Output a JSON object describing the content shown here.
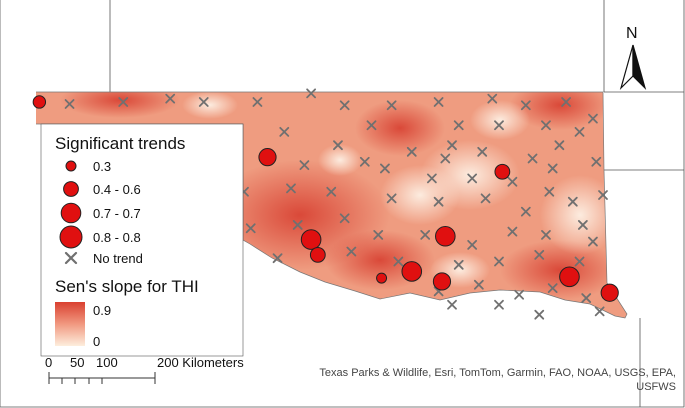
{
  "legend": {
    "trends_title": "Significant trends",
    "classes": [
      {
        "label": "0.3",
        "level": 0.3
      },
      {
        "label": "0.4 - 0.6",
        "level": 0.5
      },
      {
        "label": "0.7 - 0.7",
        "level": 0.7
      },
      {
        "label": "0.8 - 0.8",
        "level": 0.8
      }
    ],
    "no_trend_label": "No trend",
    "slope_title": "Sen's slope for THI",
    "slope_max": "0.9",
    "slope_min": "0"
  },
  "scale_bar": {
    "ticks": [
      "0",
      "50",
      "100",
      "200 Kilometers"
    ]
  },
  "north_arrow": {
    "label": "N",
    "icon": "north-arrow-icon"
  },
  "attribution": {
    "line1": "Texas Parks & Wildlife, Esri, TomTom, Garmin, FAO, NOAA, USGS, EPA,",
    "line2": "USFWS"
  },
  "colors": {
    "trend_marker": "#e01010",
    "no_trend_marker": "#707070",
    "ramp_high": "#d94030",
    "ramp_low": "#fdeedd",
    "state_fill": "#ef9c80",
    "background": "#ffffff"
  },
  "stations": {
    "significant": [
      {
        "lon": -102.95,
        "lat": 36.85,
        "trend": 0.4
      },
      {
        "lon": -99.55,
        "lat": 36.02,
        "trend": 0.6
      },
      {
        "lon": -96.05,
        "lat": 35.8,
        "trend": 0.5
      },
      {
        "lon": -98.9,
        "lat": 34.78,
        "trend": 0.7
      },
      {
        "lon": -98.8,
        "lat": 34.55,
        "trend": 0.5
      },
      {
        "lon": -96.9,
        "lat": 34.83,
        "trend": 0.7
      },
      {
        "lon": -97.85,
        "lat": 34.2,
        "trend": 0.3
      },
      {
        "lon": -97.4,
        "lat": 34.3,
        "trend": 0.7
      },
      {
        "lon": -96.95,
        "lat": 34.15,
        "trend": 0.6
      },
      {
        "lon": -95.05,
        "lat": 34.22,
        "trend": 0.7
      },
      {
        "lon": -94.45,
        "lat": 33.98,
        "trend": 0.6
      }
    ],
    "no_trend": [
      {
        "lon": -102.5,
        "lat": 36.82
      },
      {
        "lon": -101.7,
        "lat": 36.85
      },
      {
        "lon": -101.0,
        "lat": 36.9
      },
      {
        "lon": -100.5,
        "lat": 36.85
      },
      {
        "lon": -99.7,
        "lat": 36.85
      },
      {
        "lon": -98.9,
        "lat": 36.98
      },
      {
        "lon": -98.4,
        "lat": 36.8
      },
      {
        "lon": -97.7,
        "lat": 36.8
      },
      {
        "lon": -97.0,
        "lat": 36.85
      },
      {
        "lon": -96.2,
        "lat": 36.9
      },
      {
        "lon": -95.7,
        "lat": 36.8
      },
      {
        "lon": -95.1,
        "lat": 36.85
      },
      {
        "lon": -94.7,
        "lat": 36.6
      },
      {
        "lon": -99.3,
        "lat": 36.4
      },
      {
        "lon": -98.0,
        "lat": 36.5
      },
      {
        "lon": -96.7,
        "lat": 36.5
      },
      {
        "lon": -96.1,
        "lat": 36.5
      },
      {
        "lon": -95.4,
        "lat": 36.5
      },
      {
        "lon": -95.2,
        "lat": 36.2
      },
      {
        "lon": -94.9,
        "lat": 36.4
      },
      {
        "lon": -98.5,
        "lat": 36.2
      },
      {
        "lon": -97.4,
        "lat": 36.1
      },
      {
        "lon": -96.8,
        "lat": 36.2
      },
      {
        "lon": -96.35,
        "lat": 36.1
      },
      {
        "lon": -95.6,
        "lat": 36.0
      },
      {
        "lon": -95.3,
        "lat": 35.85
      },
      {
        "lon": -94.65,
        "lat": 35.95
      },
      {
        "lon": -99.0,
        "lat": 35.9
      },
      {
        "lon": -97.8,
        "lat": 35.85
      },
      {
        "lon": -97.1,
        "lat": 35.7
      },
      {
        "lon": -96.5,
        "lat": 35.7
      },
      {
        "lon": -95.9,
        "lat": 35.65
      },
      {
        "lon": -95.35,
        "lat": 35.5
      },
      {
        "lon": -94.55,
        "lat": 35.45
      },
      {
        "lon": -99.9,
        "lat": 35.5
      },
      {
        "lon": -99.2,
        "lat": 35.55
      },
      {
        "lon": -98.6,
        "lat": 35.5
      },
      {
        "lon": -97.7,
        "lat": 35.4
      },
      {
        "lon": -97.0,
        "lat": 35.35
      },
      {
        "lon": -96.3,
        "lat": 35.4
      },
      {
        "lon": -95.7,
        "lat": 35.2
      },
      {
        "lon": -95.0,
        "lat": 35.35
      },
      {
        "lon": -94.85,
        "lat": 35.0
      },
      {
        "lon": -99.8,
        "lat": 34.95
      },
      {
        "lon": -99.1,
        "lat": 35.0
      },
      {
        "lon": -98.4,
        "lat": 35.1
      },
      {
        "lon": -97.9,
        "lat": 34.85
      },
      {
        "lon": -97.2,
        "lat": 34.85
      },
      {
        "lon": -96.5,
        "lat": 34.7
      },
      {
        "lon": -95.9,
        "lat": 34.9
      },
      {
        "lon": -95.4,
        "lat": 34.85
      },
      {
        "lon": -94.7,
        "lat": 34.75
      },
      {
        "lon": -99.4,
        "lat": 34.5
      },
      {
        "lon": -98.3,
        "lat": 34.6
      },
      {
        "lon": -97.6,
        "lat": 34.45
      },
      {
        "lon": -96.7,
        "lat": 34.4
      },
      {
        "lon": -96.1,
        "lat": 34.45
      },
      {
        "lon": -95.5,
        "lat": 34.55
      },
      {
        "lon": -94.9,
        "lat": 34.45
      },
      {
        "lon": -97.0,
        "lat": 34.0
      },
      {
        "lon": -96.4,
        "lat": 34.1
      },
      {
        "lon": -95.8,
        "lat": 33.95
      },
      {
        "lon": -95.3,
        "lat": 34.05
      },
      {
        "lon": -96.8,
        "lat": 33.8
      },
      {
        "lon": -96.1,
        "lat": 33.8
      },
      {
        "lon": -95.5,
        "lat": 33.65
      },
      {
        "lon": -94.8,
        "lat": 33.9
      },
      {
        "lon": -94.6,
        "lat": 33.7
      },
      {
        "lon": -98.1,
        "lat": 35.95
      },
      {
        "lon": -96.9,
        "lat": 36.0
      }
    ]
  }
}
